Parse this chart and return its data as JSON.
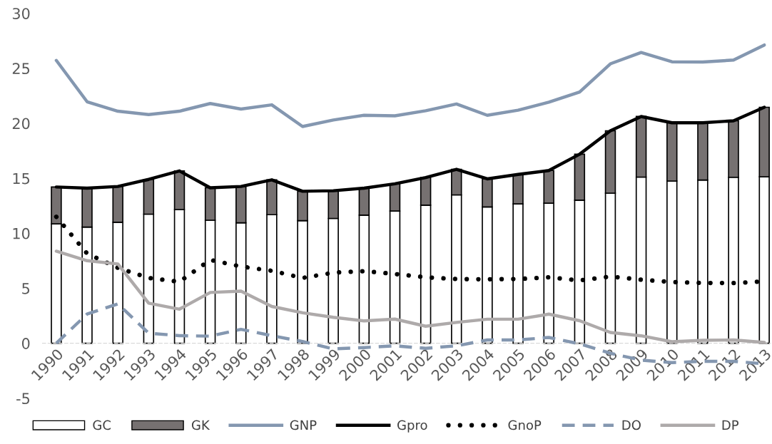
{
  "chart_data": {
    "type": "bar",
    "stacked": true,
    "ylim": [
      -5,
      30
    ],
    "yticks": [
      -5,
      0,
      5,
      10,
      15,
      20,
      25,
      30
    ],
    "legend": "bottom",
    "categories": [
      "1990",
      "1991",
      "1992",
      "1993",
      "1994",
      "1995",
      "1996",
      "1997",
      "1998",
      "1999",
      "2000",
      "2001",
      "2002",
      "2003",
      "2004",
      "2005",
      "2006",
      "2007",
      "2008",
      "2009",
      "2010",
      "2011",
      "2012",
      "2013"
    ],
    "series": [
      {
        "name": "GC",
        "color": "#ffffff",
        "values": [
          10.86,
          10.56,
          11.0,
          11.74,
          12.16,
          11.19,
          10.95,
          11.69,
          11.15,
          11.35,
          11.65,
          12.02,
          12.56,
          13.49,
          12.4,
          12.67,
          12.74,
          13.01,
          13.65,
          15.11,
          14.75,
          14.84,
          15.09,
          15.14
        ]
      },
      {
        "name": "GK",
        "color": "#767171",
        "values": [
          3.35,
          3.54,
          3.26,
          3.16,
          3.51,
          2.95,
          3.31,
          3.17,
          2.67,
          2.52,
          2.45,
          2.48,
          2.51,
          2.33,
          2.55,
          2.68,
          2.97,
          4.18,
          5.67,
          5.51,
          5.3,
          5.21,
          5.14,
          6.32
        ]
      },
      {
        "name": "GNP",
        "type": "line",
        "color": "#8497b0",
        "line_style": "solid",
        "values": [
          25.72,
          21.96,
          21.1,
          20.8,
          21.1,
          21.8,
          21.3,
          21.68,
          19.71,
          20.3,
          20.73,
          20.68,
          21.14,
          21.76,
          20.73,
          21.19,
          21.92,
          22.85,
          25.41,
          26.44,
          25.59,
          25.57,
          25.75,
          27.12
        ]
      },
      {
        "name": "Gpro",
        "type": "line",
        "color": "#000000",
        "line_style": "solid",
        "values": [
          14.21,
          14.1,
          14.26,
          14.9,
          15.67,
          14.14,
          14.26,
          14.86,
          13.82,
          13.87,
          14.1,
          14.5,
          15.07,
          15.82,
          14.95,
          15.35,
          15.71,
          17.19,
          19.32,
          20.62,
          20.05,
          20.05,
          20.23,
          21.46
        ]
      },
      {
        "name": "GnoP",
        "type": "line",
        "color": "#000000",
        "line_style": "dotted",
        "values": [
          11.5,
          8.16,
          6.86,
          5.94,
          5.59,
          7.58,
          6.98,
          6.59,
          5.94,
          6.42,
          6.56,
          6.3,
          6.0,
          5.84,
          5.82,
          5.84,
          6.0,
          5.71,
          6.07,
          5.78,
          5.57,
          5.48,
          5.48,
          5.62
        ]
      },
      {
        "name": "DO",
        "type": "line",
        "color": "#8497b0",
        "line_style": "dashed",
        "values": [
          0.0,
          2.66,
          3.58,
          0.92,
          0.69,
          0.65,
          1.27,
          0.69,
          0.16,
          -0.51,
          -0.39,
          -0.23,
          -0.46,
          -0.23,
          0.3,
          0.3,
          0.53,
          -0.05,
          -0.91,
          -1.53,
          -1.76,
          -1.64,
          -1.64,
          -1.87
        ]
      },
      {
        "name": "DP",
        "type": "line",
        "color": "#aeaaaa",
        "line_style": "solid",
        "values": [
          8.37,
          7.51,
          7.21,
          3.65,
          3.1,
          4.62,
          4.74,
          3.35,
          2.77,
          2.36,
          2.03,
          2.2,
          1.55,
          1.9,
          2.19,
          2.19,
          2.65,
          2.05,
          0.98,
          0.68,
          0.14,
          0.27,
          0.3,
          0.07
        ]
      }
    ]
  }
}
